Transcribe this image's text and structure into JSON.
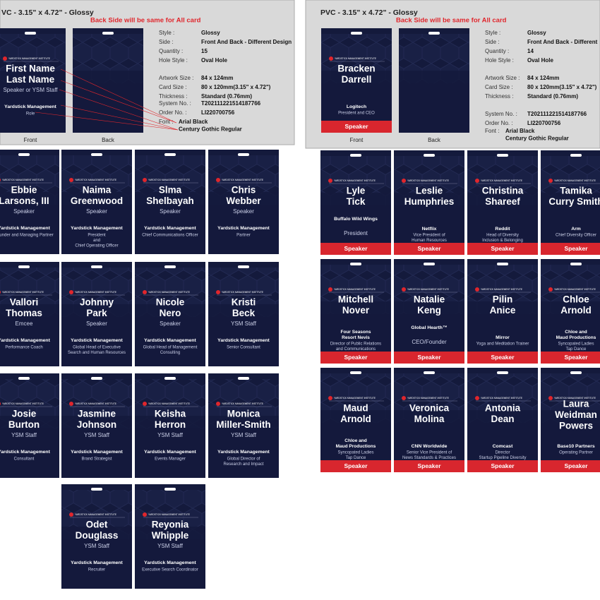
{
  "logo": "YARDSTICK MANAGEMENT INSTITUTE",
  "left": {
    "title": "VC - 3.15\" x 4.72\" - Glossy",
    "note": "Back Side will be same for All card",
    "sample": {
      "name": [
        "First Name",
        "Last Name"
      ],
      "role": "Speaker or YSM Staff",
      "company": "Yardstick Management",
      "title": [
        "Role"
      ]
    },
    "front_label": "Front",
    "back_label": "Back",
    "specs": [
      {
        "label": "Style :",
        "value": "Glossy"
      },
      {
        "label": "Side :",
        "value": "Front And Back - Different Design"
      },
      {
        "label": "Quantity :",
        "value": "15"
      },
      {
        "label": "Hole Style :",
        "value": "Oval Hole"
      },
      {
        "label": "Artwork Size :",
        "value": "84 x 124mm"
      },
      {
        "label": "Card Size :",
        "value": "80 x 120mm(3.15\" x 4.72\")"
      },
      {
        "label": "Thickness :",
        "value": "Standard (0.76mm)"
      },
      {
        "label": "System No. :",
        "value": "T202111221514187766"
      },
      {
        "label": "Order No. :",
        "value": "LI220700756"
      }
    ],
    "font": {
      "label": "Font :",
      "values": [
        "Arial Black",
        "Century Gothic Regular"
      ]
    },
    "cards": [
      {
        "name": [
          "Ebbie",
          "Larsons, III"
        ],
        "role": "Speaker",
        "company": "Yardstick Management",
        "title": [
          "Founder and Managing Partner"
        ]
      },
      {
        "name": [
          "Naima",
          "Greenwood"
        ],
        "role": "Speaker",
        "company": "Yardstick Management",
        "title": [
          "President",
          "and",
          "Chief Operating Officer"
        ]
      },
      {
        "name": [
          "Slma",
          "Shelbayah"
        ],
        "role": "Speaker",
        "company": "Yardstick Management",
        "title": [
          "Chief Communications Officer"
        ]
      },
      {
        "name": [
          "Chris",
          "Webber"
        ],
        "role": "Speaker",
        "company": "Yardstick Management",
        "title": [
          "Partner"
        ]
      },
      {
        "name": [
          "Vallori",
          "Thomas"
        ],
        "role": "Emcee",
        "company": "Yardstick Management",
        "title": [
          "Performance Coach"
        ]
      },
      {
        "name": [
          "Johnny",
          "Park"
        ],
        "role": "Speaker",
        "company": "Yardstick Management",
        "title": [
          "Global Head of Executive",
          "Search and Human Resources"
        ]
      },
      {
        "name": [
          "Nicole",
          "Nero"
        ],
        "role": "Speaker",
        "company": "Yardstick Management",
        "title": [
          "Global Head of Management",
          "Consulting"
        ]
      },
      {
        "name": [
          "Kristi",
          "Beck"
        ],
        "role": "YSM Staff",
        "company": "Yardstick Management",
        "title": [
          "Senior Consultant"
        ]
      },
      {
        "name": [
          "Josie",
          "Burton"
        ],
        "role": "YSM Staff",
        "company": "Yardstick Management",
        "title": [
          "Consultant"
        ]
      },
      {
        "name": [
          "Jasmine",
          "Johnson"
        ],
        "role": "YSM Staff",
        "company": "Yardstick Management",
        "title": [
          "Brand Strategist"
        ]
      },
      {
        "name": [
          "Keisha",
          "Herron"
        ],
        "role": "YSM Staff",
        "company": "Yardstick Management",
        "title": [
          "Events Manager"
        ]
      },
      {
        "name": [
          "Monica",
          "Miller-Smith"
        ],
        "role": "YSM Staff",
        "company": "Yardstick Management",
        "title": [
          "Global Director of",
          "Research and Impact"
        ]
      },
      {
        "name": [
          "Odet",
          "Douglass"
        ],
        "role": "YSM Staff",
        "company": "Yardstick Management",
        "title": [
          "Recruiter"
        ]
      },
      {
        "name": [
          "Reyonia",
          "Whipple"
        ],
        "role": "YSM Staff",
        "company": "Yardstick Management",
        "title": [
          "Executive Search Coordinator"
        ]
      }
    ]
  },
  "right": {
    "title": "PVC - 3.15\" x 4.72\" - Glossy",
    "note": "Back Side will be same for All card",
    "sample": {
      "name": [
        "Bracken",
        "Darrell"
      ],
      "company": "Logitech",
      "title": [
        "President and CEO"
      ],
      "band": "Speaker"
    },
    "front_label": "Front",
    "back_label": "Back",
    "specs": [
      {
        "label": "Style :",
        "value": "Glossy"
      },
      {
        "label": "Side :",
        "value": "Front And Back - Different"
      },
      {
        "label": "Quantity :",
        "value": "14"
      },
      {
        "label": "Hole Style :",
        "value": "Oval Hole"
      },
      {
        "label": "Artwork Size :",
        "value": "84 x 124mm"
      },
      {
        "label": "Card Size :",
        "value": "80 x 120mm(3.15\" x 4.72\")"
      },
      {
        "label": "Thickness :",
        "value": "Standard (0.76mm)"
      },
      {
        "label": "System No. :",
        "value": "T202111221514187766"
      },
      {
        "label": "Order No. :",
        "value": "LI220700756"
      }
    ],
    "font": {
      "label": "Font :",
      "values": [
        "Arial Black",
        "Century Gothic Regular"
      ]
    },
    "cards": [
      {
        "name": [
          "Lyle",
          "Tick"
        ],
        "company": "Buffalo Wild Wings",
        "title": [
          "President"
        ],
        "band": "Speaker",
        "big": true
      },
      {
        "name": [
          "Leslie",
          "Humphries"
        ],
        "company": "Netflix",
        "title": [
          "Vice President of",
          "Human Resources"
        ],
        "band": "Speaker"
      },
      {
        "name": [
          "Christina",
          "Shareef"
        ],
        "company": "Reddit",
        "title": [
          "Head of Diversity",
          "Inclusion & Belonging"
        ],
        "band": "Speaker"
      },
      {
        "name": [
          "Tamika",
          "Curry Smith"
        ],
        "company": "Arm",
        "title": [
          "Chief Diversity Officer"
        ],
        "band": "Speaker"
      },
      {
        "name": [
          "Mitchell",
          "Nover"
        ],
        "company": "Four Seasons\nResort Nevis",
        "title": [
          "Director of Public Relations",
          "and Communications"
        ],
        "band": "Speaker"
      },
      {
        "name": [
          "Natalie",
          "Keng"
        ],
        "company": "Global Hearth™",
        "title": [
          "CEO/Founder"
        ],
        "band": "Speaker",
        "big": true
      },
      {
        "name": [
          "Pilin",
          "Anice"
        ],
        "company": "Mirror",
        "title": [
          "Yoga and Meditation Trainer"
        ],
        "band": "Speaker"
      },
      {
        "name": [
          "Chloe",
          "Arnold"
        ],
        "company": "Chloe and\nMaud Productions",
        "title": [
          "Syncopated Ladies",
          "Tap Dance"
        ],
        "band": "Speaker"
      },
      {
        "name": [
          "Maud",
          "Arnold"
        ],
        "company": "Chloe and\nMaud Productions",
        "title": [
          "Syncopated Ladies",
          "Tap Dance"
        ],
        "band": "Speaker"
      },
      {
        "name": [
          "Veronica",
          "Molina"
        ],
        "company": "CNN Worldwide",
        "title": [
          "Senior Vice President of",
          "News Standards & Practices"
        ],
        "band": "Speaker"
      },
      {
        "name": [
          "Antonia",
          "Dean"
        ],
        "company": "Comcast",
        "title": [
          "Director",
          "Startup Pipeline Diversity"
        ],
        "band": "Speaker"
      },
      {
        "name": [
          "Laura",
          "Weidman",
          "Powers"
        ],
        "company": "Base10 Partners",
        "title": [
          "Operating Partner"
        ],
        "band": "Speaker"
      }
    ]
  }
}
